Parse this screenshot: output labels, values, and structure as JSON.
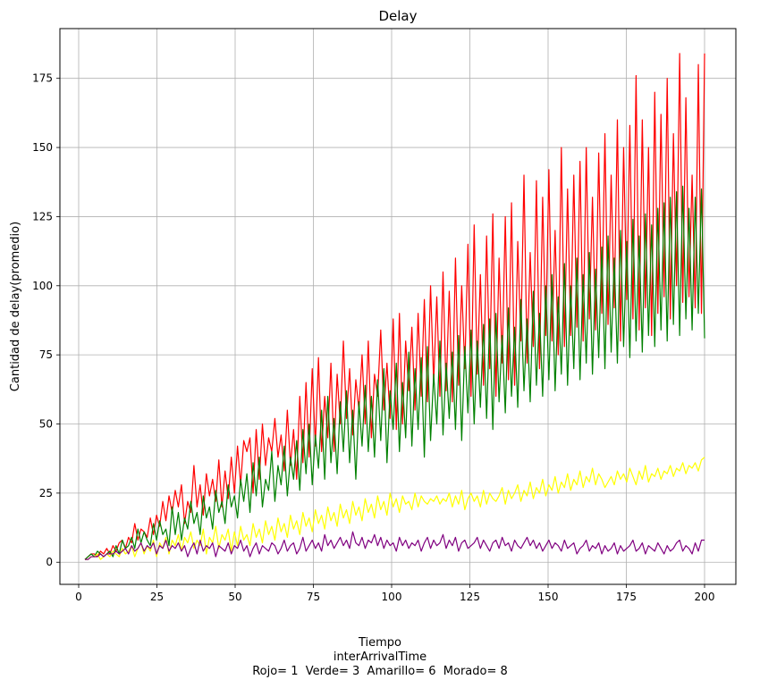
{
  "chart_data": {
    "type": "line",
    "title": "Delay",
    "xlabel_lines": [
      "Tiempo",
      "interArrivalTime",
      "Rojo= 1  Verde= 3  Amarillo= 6  Morado= 8"
    ],
    "ylabel": "Cantidad de delay(promedio)",
    "xlim": [
      -6,
      210
    ],
    "ylim": [
      -8,
      193
    ],
    "xticks": [
      0,
      25,
      50,
      75,
      100,
      125,
      150,
      175,
      200
    ],
    "yticks": [
      0,
      25,
      50,
      75,
      100,
      125,
      150,
      175
    ],
    "grid": true,
    "legend": "none",
    "x_start": 2,
    "x_end": 200,
    "series": [
      {
        "color": "#ff0000",
        "values": [
          1,
          2,
          3,
          3,
          2,
          4,
          3,
          5,
          3,
          6,
          4,
          7,
          8,
          5,
          9,
          7,
          14,
          8,
          12,
          11,
          9,
          16,
          10,
          17,
          13,
          22,
          15,
          24,
          18,
          26,
          20,
          28,
          14,
          22,
          18,
          35,
          20,
          28,
          17,
          32,
          24,
          30,
          22,
          37,
          20,
          33,
          23,
          38,
          25,
          42,
          28,
          44,
          40,
          45,
          25,
          48,
          30,
          50,
          35,
          45,
          40,
          52,
          38,
          46,
          33,
          55,
          35,
          48,
          30,
          60,
          36,
          65,
          38,
          70,
          42,
          74,
          40,
          60,
          45,
          72,
          40,
          68,
          50,
          80,
          52,
          70,
          46,
          66,
          55,
          75,
          50,
          80,
          45,
          68,
          60,
          84,
          55,
          72,
          52,
          88,
          48,
          90,
          50,
          80,
          62,
          85,
          55,
          90,
          60,
          95,
          58,
          100,
          65,
          96,
          60,
          105,
          62,
          98,
          58,
          110,
          64,
          100,
          70,
          115,
          60,
          122,
          68,
          104,
          64,
          118,
          70,
          126,
          60,
          110,
          72,
          125,
          66,
          130,
          64,
          116,
          80,
          140,
          72,
          112,
          78,
          138,
          70,
          132,
          82,
          142,
          80,
          120,
          75,
          150,
          78,
          135,
          82,
          140,
          85,
          145,
          80,
          150,
          88,
          132,
          84,
          148,
          90,
          155,
          86,
          140,
          92,
          160,
          80,
          150,
          95,
          158,
          88,
          176,
          84,
          160,
          92,
          150,
          82,
          170,
          90,
          162,
          96,
          175,
          88,
          155,
          100,
          184,
          94,
          168,
          96,
          140,
          92,
          180,
          90,
          184
        ]
      },
      {
        "color": "#008000",
        "values": [
          1,
          2,
          3,
          2,
          4,
          3,
          2,
          3,
          4,
          2,
          6,
          3,
          8,
          5,
          6,
          9,
          5,
          12,
          7,
          11,
          8,
          6,
          14,
          8,
          15,
          10,
          12,
          6,
          20,
          10,
          18,
          8,
          16,
          12,
          22,
          14,
          18,
          10,
          24,
          16,
          20,
          12,
          26,
          18,
          22,
          14,
          28,
          20,
          24,
          16,
          30,
          22,
          32,
          18,
          36,
          24,
          38,
          20,
          30,
          26,
          40,
          22,
          35,
          28,
          42,
          24,
          38,
          30,
          44,
          26,
          48,
          32,
          50,
          28,
          46,
          34,
          55,
          30,
          60,
          36,
          52,
          32,
          58,
          40,
          62,
          36,
          55,
          30,
          58,
          42,
          64,
          40,
          60,
          38,
          66,
          44,
          70,
          36,
          62,
          48,
          72,
          40,
          65,
          45,
          76,
          42,
          70,
          48,
          74,
          38,
          78,
          44,
          68,
          50,
          80,
          46,
          72,
          52,
          76,
          48,
          82,
          44,
          78,
          54,
          84,
          50,
          80,
          56,
          86,
          52,
          88,
          48,
          90,
          58,
          82,
          54,
          92,
          60,
          85,
          56,
          95,
          62,
          88,
          58,
          98,
          64,
          90,
          60,
          100,
          66,
          104,
          62,
          96,
          68,
          108,
          64,
          100,
          70,
          110,
          66,
          104,
          72,
          112,
          68,
          106,
          74,
          114,
          70,
          118,
          76,
          110,
          72,
          120,
          78,
          116,
          74,
          124,
          80,
          118,
          76,
          126,
          82,
          122,
          78,
          128,
          84,
          130,
          80,
          132,
          86,
          134,
          82,
          136,
          88,
          128,
          84,
          132,
          90,
          135,
          81
        ]
      },
      {
        "color": "#ffff00",
        "values": [
          1,
          1,
          2,
          2,
          3,
          1,
          2,
          3,
          2,
          4,
          3,
          2,
          5,
          3,
          4,
          6,
          2,
          5,
          7,
          3,
          6,
          4,
          8,
          2,
          7,
          5,
          9,
          3,
          8,
          6,
          10,
          4,
          9,
          7,
          11,
          5,
          8,
          6,
          12,
          3,
          9,
          7,
          13,
          5,
          10,
          8,
          12,
          4,
          11,
          6,
          13,
          8,
          10,
          6,
          14,
          9,
          12,
          7,
          15,
          10,
          13,
          8,
          16,
          11,
          14,
          9,
          17,
          12,
          15,
          10,
          18,
          13,
          16,
          11,
          19,
          14,
          17,
          12,
          20,
          15,
          18,
          13,
          21,
          16,
          19,
          14,
          22,
          17,
          20,
          15,
          23,
          18,
          21,
          16,
          24,
          19,
          22,
          17,
          25,
          20,
          23,
          18,
          24,
          21,
          22,
          19,
          25,
          20,
          24,
          22,
          21,
          23,
          22,
          24,
          21,
          23,
          22,
          25,
          20,
          24,
          21,
          26,
          19,
          23,
          25,
          22,
          24,
          20,
          26,
          21,
          25,
          23,
          22,
          24,
          27,
          21,
          26,
          23,
          25,
          28,
          22,
          26,
          24,
          29,
          23,
          27,
          25,
          30,
          24,
          28,
          26,
          31,
          25,
          29,
          27,
          32,
          26,
          30,
          28,
          33,
          27,
          31,
          29,
          34,
          28,
          32,
          30,
          27,
          29,
          31,
          28,
          33,
          30,
          32,
          29,
          34,
          31,
          28,
          33,
          30,
          35,
          29,
          32,
          31,
          34,
          30,
          33,
          32,
          35,
          31,
          34,
          33,
          36,
          32,
          35,
          34,
          36,
          33,
          37,
          38
        ]
      },
      {
        "color": "#800080",
        "values": [
          1,
          1,
          2,
          2,
          2,
          3,
          2,
          3,
          3,
          3,
          4,
          3,
          4,
          5,
          3,
          6,
          4,
          5,
          7,
          4,
          6,
          5,
          7,
          3,
          6,
          5,
          8,
          4,
          6,
          5,
          7,
          4,
          6,
          2,
          5,
          7,
          3,
          8,
          4,
          6,
          5,
          7,
          2,
          6,
          5,
          4,
          7,
          3,
          6,
          5,
          8,
          4,
          6,
          2,
          5,
          7,
          3,
          6,
          5,
          4,
          7,
          6,
          3,
          5,
          8,
          4,
          6,
          7,
          3,
          5,
          9,
          4,
          6,
          8,
          5,
          7,
          4,
          10,
          6,
          8,
          5,
          7,
          9,
          6,
          8,
          5,
          11,
          7,
          6,
          9,
          5,
          8,
          7,
          10,
          6,
          9,
          5,
          8,
          6,
          7,
          4,
          9,
          6,
          8,
          5,
          7,
          6,
          8,
          4,
          7,
          9,
          5,
          8,
          6,
          7,
          10,
          5,
          8,
          6,
          9,
          4,
          7,
          8,
          5,
          6,
          7,
          9,
          5,
          8,
          6,
          4,
          7,
          8,
          5,
          9,
          6,
          7,
          4,
          8,
          6,
          5,
          7,
          9,
          6,
          8,
          5,
          7,
          4,
          6,
          8,
          5,
          7,
          6,
          4,
          8,
          5,
          6,
          7,
          3,
          5,
          6,
          8,
          4,
          6,
          5,
          7,
          3,
          6,
          4,
          5,
          7,
          3,
          6,
          4,
          5,
          6,
          8,
          4,
          5,
          7,
          3,
          6,
          5,
          4,
          7,
          5,
          3,
          6,
          4,
          5,
          7,
          8,
          4,
          6,
          5,
          3,
          7,
          4,
          8,
          8
        ]
      }
    ]
  }
}
